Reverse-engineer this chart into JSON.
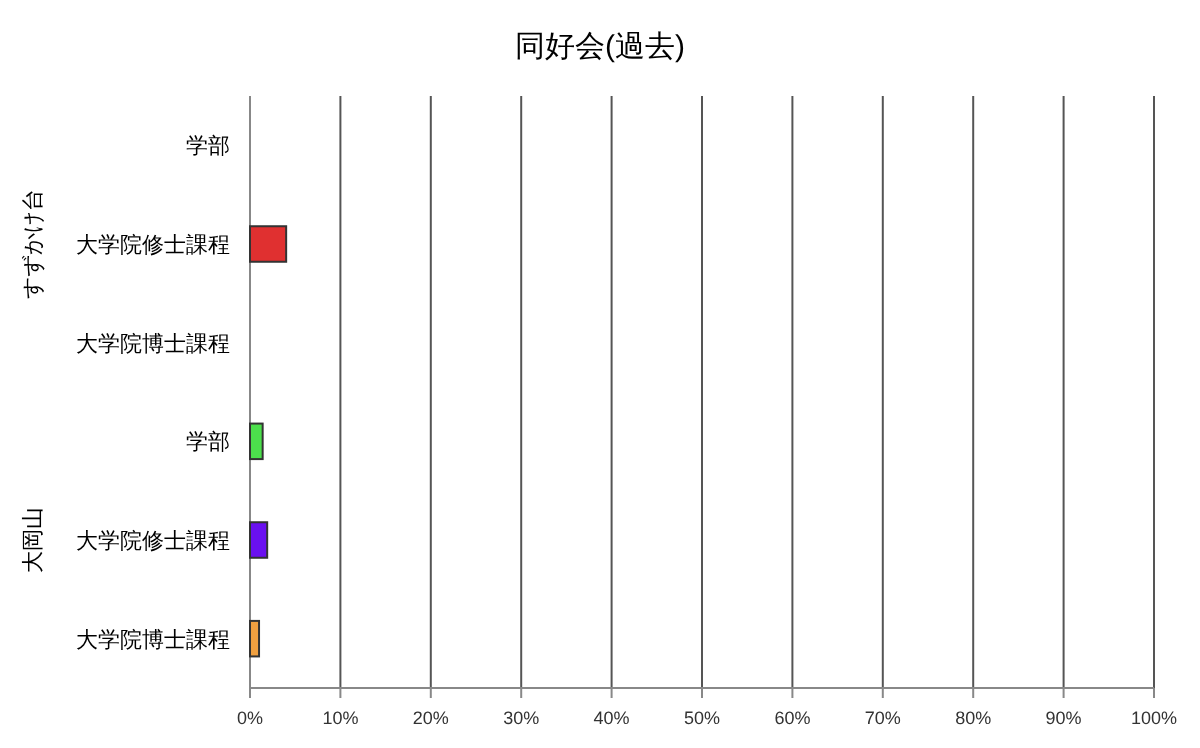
{
  "chart_data": {
    "type": "bar",
    "orientation": "horizontal",
    "title": "同好会(過去)",
    "categories": [
      "学部",
      "大学院修士課程",
      "大学院博士課程",
      "学部",
      "大学院修士課程",
      "大学院博士課程"
    ],
    "values": [
      0,
      4,
      0,
      1.4,
      1.9,
      1.0
    ],
    "colors": [
      "#e03030",
      "#e03030",
      "#e03030",
      "#4ce04c",
      "#6a10f0",
      "#f0a040"
    ],
    "annotations": [
      "すずかけ台",
      "大岡山"
    ],
    "xlim": [
      0,
      100
    ],
    "xticks": [
      {
        "value": 0,
        "label": "0%"
      },
      {
        "value": 10,
        "label": "10%"
      },
      {
        "value": 20,
        "label": "20%"
      },
      {
        "value": 30,
        "label": "30%"
      },
      {
        "value": 40,
        "label": "40%"
      },
      {
        "value": 50,
        "label": "50%"
      },
      {
        "value": 60,
        "label": "60%"
      },
      {
        "value": 70,
        "label": "70%"
      },
      {
        "value": 80,
        "label": "80%"
      },
      {
        "value": 90,
        "label": "90%"
      },
      {
        "value": 100,
        "label": "100%"
      }
    ],
    "grid": "x"
  }
}
